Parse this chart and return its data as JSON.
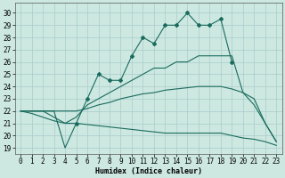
{
  "xlabel": "Humidex (Indice chaleur)",
  "background_color": "#cce8e0",
  "grid_color": "#aacccc",
  "line_color": "#1a6b5e",
  "xlim": [
    -0.5,
    23.5
  ],
  "ylim": [
    18.5,
    30.8
  ],
  "yticks": [
    19,
    20,
    21,
    22,
    23,
    24,
    25,
    26,
    27,
    28,
    29,
    30
  ],
  "xticks": [
    0,
    1,
    2,
    3,
    4,
    5,
    6,
    7,
    8,
    9,
    10,
    11,
    12,
    13,
    14,
    15,
    16,
    17,
    18,
    19,
    20,
    21,
    22,
    23
  ],
  "line1_x": [
    0,
    1,
    2,
    3,
    4,
    5,
    6,
    7,
    8,
    9,
    10,
    11,
    12,
    13,
    14,
    15,
    16,
    17,
    18,
    19
  ],
  "line1_y": [
    22,
    22,
    22,
    22,
    19,
    21,
    23,
    25.0,
    24.5,
    24.5,
    26.5,
    28.0,
    27.5,
    29.0,
    29.0,
    30.0,
    29.0,
    29.0,
    29.5,
    26.0
  ],
  "line1_markers": [
    5,
    6,
    7,
    8,
    9,
    10,
    11,
    12,
    13,
    14,
    15,
    16,
    17,
    18,
    19
  ],
  "line2_x": [
    0,
    1,
    2,
    3,
    4,
    5,
    6,
    7,
    8,
    9,
    10,
    11,
    12,
    13,
    14,
    15,
    16,
    17,
    18,
    19,
    20,
    21,
    22,
    23
  ],
  "line2_y": [
    22,
    22,
    22,
    21.5,
    21.0,
    21.5,
    22.5,
    23.0,
    23.5,
    24.0,
    24.5,
    25.0,
    25.5,
    25.5,
    26.0,
    26.0,
    26.5,
    26.5,
    26.5,
    26.5,
    23.5,
    23.0,
    21.0,
    19.5
  ],
  "line3_x": [
    0,
    1,
    2,
    3,
    4,
    5,
    6,
    7,
    8,
    9,
    10,
    11,
    12,
    13,
    14,
    15,
    16,
    17,
    18,
    19,
    20,
    21,
    22,
    23
  ],
  "line3_y": [
    22,
    22,
    22,
    22,
    22,
    22,
    22.2,
    22.5,
    22.7,
    23.0,
    23.2,
    23.4,
    23.5,
    23.7,
    23.8,
    23.9,
    24.0,
    24.0,
    24.0,
    23.8,
    23.5,
    22.5,
    21.0,
    19.5
  ],
  "line4_x": [
    0,
    1,
    2,
    3,
    4,
    5,
    6,
    7,
    8,
    9,
    10,
    11,
    12,
    13,
    14,
    15,
    16,
    17,
    18,
    19,
    20,
    21,
    22,
    23
  ],
  "line4_y": [
    22,
    21.8,
    21.5,
    21.2,
    21.0,
    21.0,
    20.9,
    20.8,
    20.7,
    20.6,
    20.5,
    20.4,
    20.3,
    20.2,
    20.2,
    20.2,
    20.2,
    20.2,
    20.2,
    20.0,
    19.8,
    19.7,
    19.5,
    19.2
  ]
}
